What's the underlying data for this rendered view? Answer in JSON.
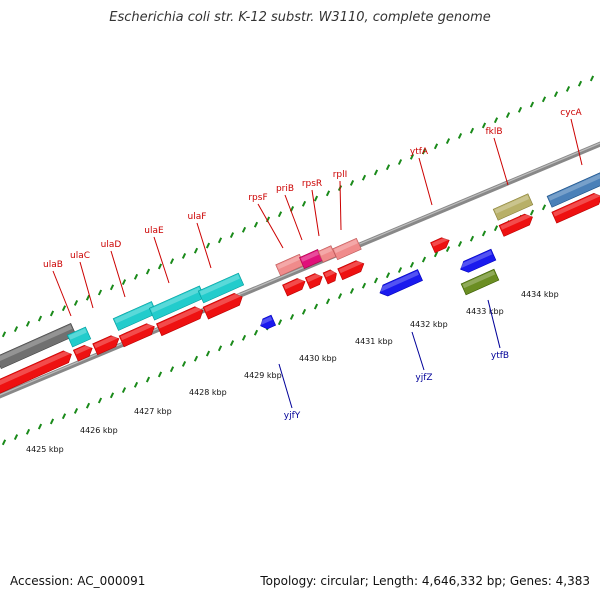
{
  "title": "Escherichia coli str. K-12 substr. W3110, complete genome",
  "footer": {
    "accession": "Accession: AC_000091",
    "topology": "Topology: circular; Length: 4,646,332 bp; Genes: 4,383"
  },
  "colors": {
    "forward_label": "#cc0000",
    "reverse_label": "#000099",
    "tick": "#1a8a1a",
    "backbone": "#888888"
  },
  "kbp_ticks": [
    "4425 kbp",
    "4426 kbp",
    "4427 kbp",
    "4428 kbp",
    "4429 kbp",
    "4430 kbp",
    "4431 kbp",
    "4432 kbp",
    "4433 kbp",
    "4434 kbp"
  ],
  "forward_genes": [
    "ulaB",
    "ulaC",
    "ulaD",
    "ulaE",
    "ulaF",
    "rpsF",
    "priB",
    "rpsR",
    "rplI",
    "ytfA",
    "fklB",
    "cycA"
  ],
  "reverse_genes": [
    "yjfY",
    "yjfZ",
    "ytfB"
  ]
}
